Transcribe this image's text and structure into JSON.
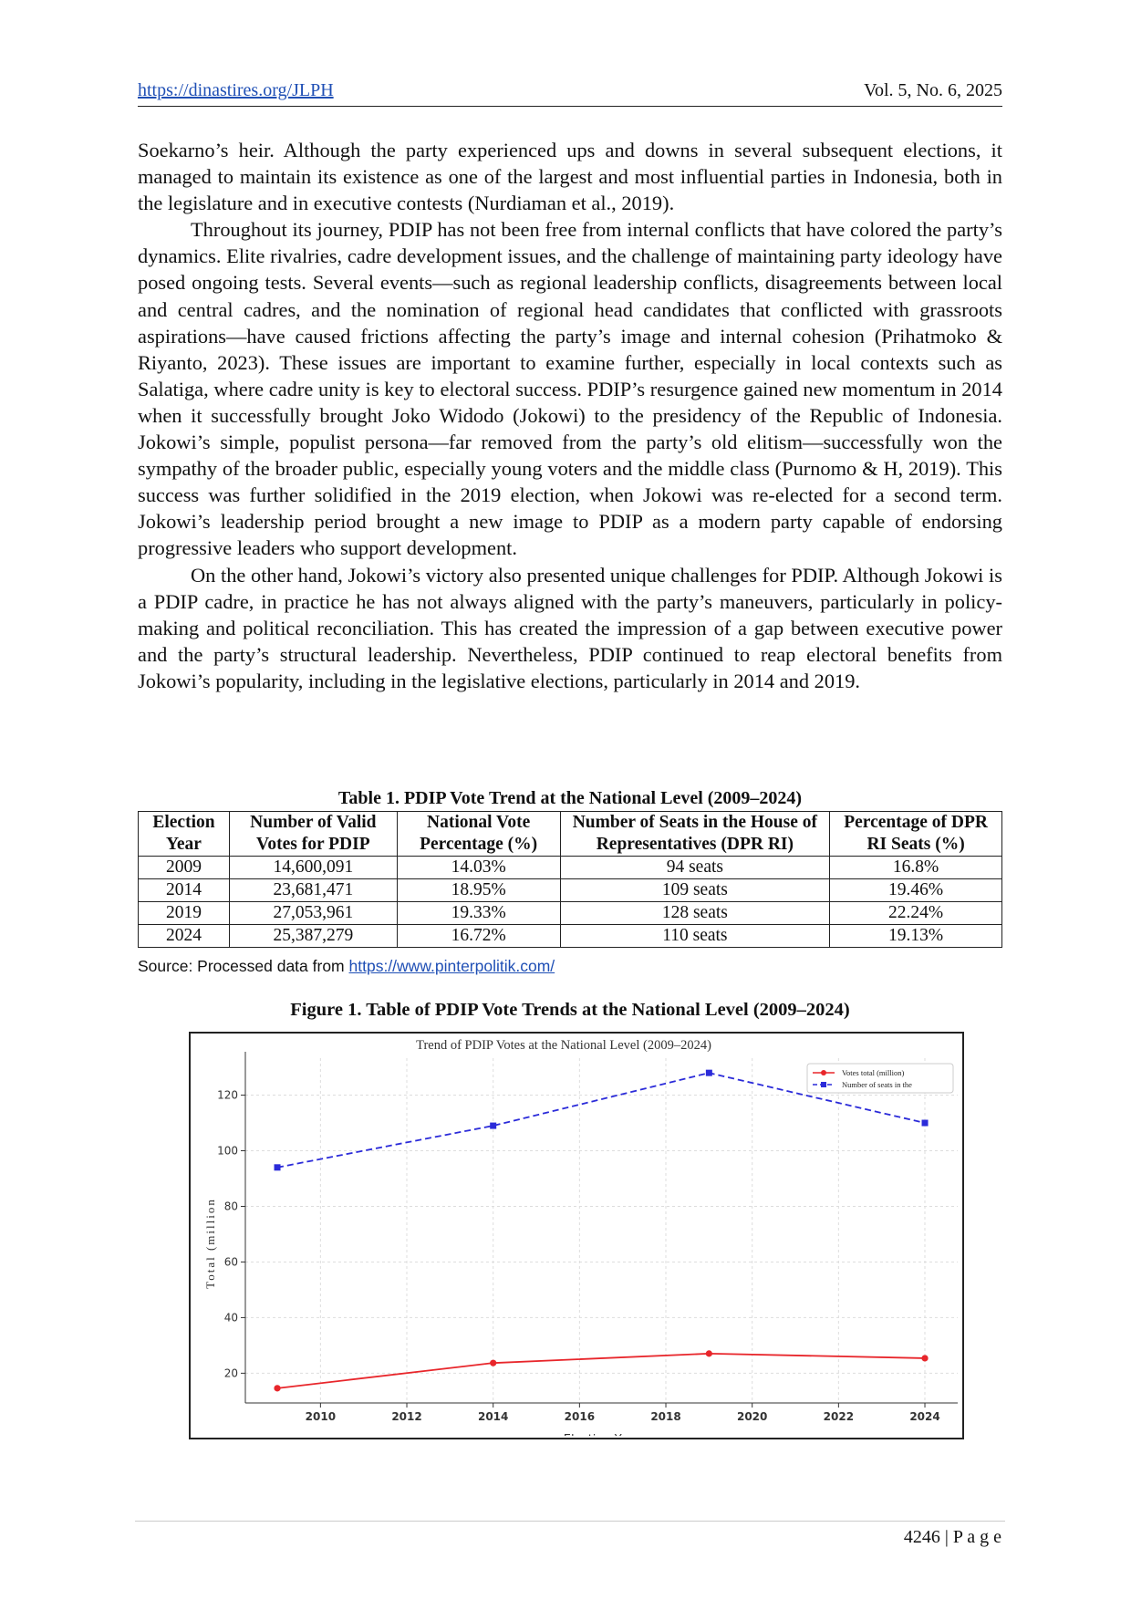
{
  "header": {
    "link": "https://dinastires.org/JLPH",
    "volume": "Vol. 5, No. 6,  2025"
  },
  "paragraphs": [
    "Soekarno’s heir. Although the party experienced ups and downs in several subsequent elections, it managed to maintain its existence as one of the largest and most influential parties in Indonesia, both in the legislature and in executive contests (Nurdiaman et al., 2019).",
    "Throughout its journey, PDIP has not been free from internal conflicts that have colored the party’s dynamics. Elite rivalries, cadre development issues, and the challenge of maintaining party ideology have posed ongoing tests. Several events—such as regional leadership conflicts, disagreements between local and central cadres, and the nomination of regional head candidates that conflicted with grassroots aspirations—have caused frictions affecting the party’s image and internal cohesion (Prihatmoko & Riyanto, 2023). These issues are important to examine further, especially in local contexts such as Salatiga, where cadre unity is key to electoral success. PDIP’s resurgence gained new momentum in 2014 when it successfully brought Joko Widodo (Jokowi) to the presidency of the Republic of Indonesia. Jokowi’s simple, populist persona—far removed from the party’s old elitism—successfully won the sympathy of the broader public, especially young voters and the middle class (Purnomo & H, 2019). This success was further solidified in the 2019 election, when Jokowi was re-elected for a second term. Jokowi’s leadership period brought a new image to PDIP as a modern party capable of endorsing progressive leaders who support development.",
    "On the other hand, Jokowi’s victory also presented unique challenges for PDIP. Although Jokowi is a PDIP cadre, in practice he has not always aligned with the party’s maneuvers, particularly in policy-making and political reconciliation. This has created the impression of a gap between executive power and the party’s structural leadership. Nevertheless, PDIP continued to reap electoral benefits from Jokowi’s popularity, including in the legislative elections, particularly in 2014 and 2019."
  ],
  "table": {
    "caption": "Table 1. PDIP Vote Trend at the National Level (2009–2024)",
    "columns": [
      "Election Year",
      "Number of Valid Votes for PDIP",
      "National Vote Percentage (%)",
      "Number of Seats in the House of Representatives (DPR RI)",
      "Percentage of DPR RI Seats (%)"
    ],
    "rows": [
      [
        "2009",
        "14,600,091",
        "14.03%",
        "94 seats",
        "16.8%"
      ],
      [
        "2014",
        "23,681,471",
        "18.95%",
        "109 seats",
        "19.46%"
      ],
      [
        "2019",
        "27,053,961",
        "19.33%",
        "128 seats",
        "22.24%"
      ],
      [
        "2024",
        "25,387,279",
        "16.72%",
        "110 seats",
        "19.13%"
      ]
    ]
  },
  "source": {
    "text": "Source: Processed data from",
    "link": "https://www.pinterpolitik.com/"
  },
  "figure_caption": "Figure 1. Table of PDIP Vote Trends at the National Level (2009–2024)",
  "chart_data": {
    "type": "line",
    "title": "Trend of PDIP Votes at the National Level (2009–2024)",
    "x_label": "Election Year",
    "y_label": "Total (million",
    "x": [
      2009,
      2014,
      2019,
      2024
    ],
    "series": [
      {
        "name": "Votes total (million)",
        "color": "#e8262b",
        "marker": "circle",
        "dashed": false,
        "values": [
          14.6,
          23.68,
          27.05,
          25.39
        ]
      },
      {
        "name": "Number of seats in the",
        "color": "#2b2bd9",
        "marker": "square",
        "dashed": true,
        "values": [
          94,
          109,
          128,
          110
        ]
      }
    ],
    "xlim": [
      2008.26,
      2024.76
    ],
    "xticks": [
      2010,
      2012,
      2014,
      2016,
      2018,
      2020,
      2022,
      2024
    ],
    "ylim": [
      9.3,
      133.3
    ],
    "yticks": [
      20,
      40,
      60,
      80,
      100,
      120
    ],
    "grid": true,
    "legend": "upper right"
  },
  "footer": {
    "page": "4246 | P a g e"
  }
}
